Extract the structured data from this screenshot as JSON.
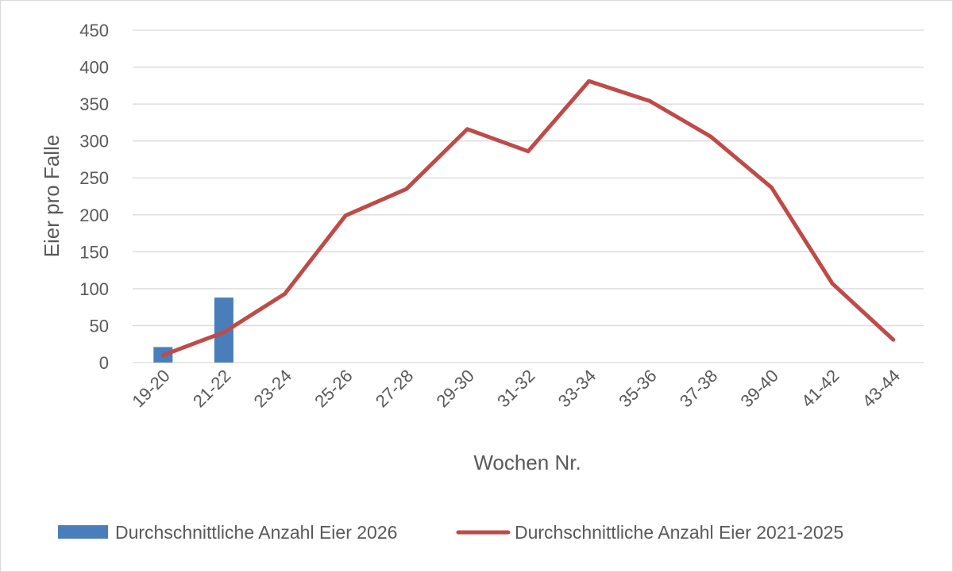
{
  "colors": {
    "bar": "#4a7ebb",
    "line": "#be4b48",
    "grid": "#d9d9d9",
    "text": "#595959"
  },
  "chart_data": {
    "type": "bar",
    "title": "",
    "xlabel": "Wochen Nr.",
    "ylabel": "Eier pro Falle",
    "ylim": [
      0,
      450
    ],
    "yticks": [
      0,
      50,
      100,
      150,
      200,
      250,
      300,
      350,
      400,
      450
    ],
    "grid": true,
    "legend_position": "bottom",
    "categories": [
      "19-20",
      "21-22",
      "23-24",
      "25-26",
      "27-28",
      "29-30",
      "31-32",
      "33-34",
      "35-36",
      "37-38",
      "39-40",
      "41-42",
      "43-44"
    ],
    "series": [
      {
        "name": "Durchschnittliche Anzahl Eier 2026",
        "type": "bar",
        "values": [
          21,
          88,
          null,
          null,
          null,
          null,
          null,
          null,
          null,
          null,
          null,
          null,
          null
        ]
      },
      {
        "name": "Durchschnittliche Anzahl Eier 2021-2025",
        "type": "line",
        "values": [
          10,
          41,
          93,
          199,
          235,
          316,
          286,
          381,
          354,
          306,
          237,
          107,
          31
        ]
      }
    ]
  }
}
